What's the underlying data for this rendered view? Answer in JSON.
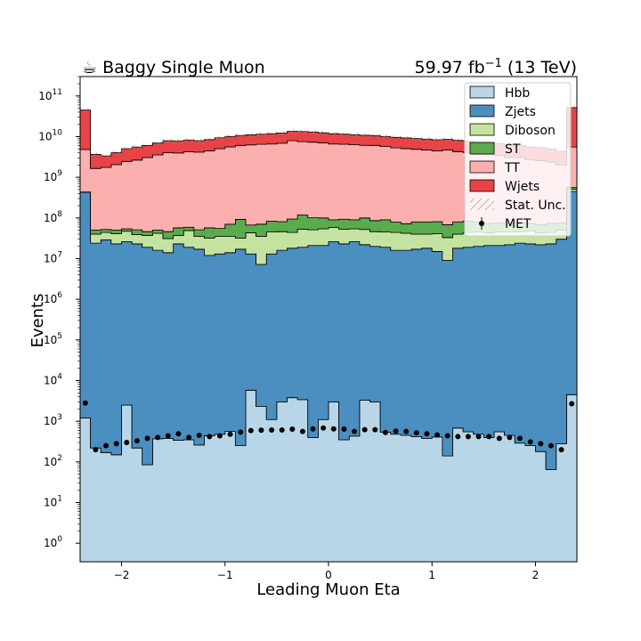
{
  "chart_data": {
    "type": "histogram-stack",
    "title_left": "Baggy Single Muon",
    "title_right_base": "59.97 fb",
    "title_right_exp": "−1",
    "title_right_tail": " (13 TeV)",
    "xlabel": "Leading Muon Eta",
    "ylabel": "Events",
    "yscale": "log",
    "xlim": [
      -2.4,
      2.4
    ],
    "ylim": [
      0.35,
      300000000000.0
    ],
    "xticks": [
      -2,
      -1,
      0,
      1,
      2
    ],
    "xtick_labels": [
      "−2",
      "−1",
      "0",
      "1",
      "2"
    ],
    "yticks_exp": [
      0,
      1,
      2,
      3,
      4,
      5,
      6,
      7,
      8,
      9,
      10,
      11
    ],
    "ytick_base": "10",
    "legend_position": "top-right",
    "bins": 48,
    "series": [
      {
        "name": "Hbb",
        "color": "#b8d6e8",
        "values": [
          1200,
          220,
          170,
          150,
          2500,
          220,
          85,
          370,
          380,
          340,
          350,
          260,
          440,
          480,
          560,
          250,
          5800,
          2300,
          1100,
          3000,
          3800,
          3400,
          400,
          1100,
          3000,
          350,
          430,
          3300,
          3000,
          540,
          480,
          450,
          420,
          380,
          410,
          140,
          680,
          550,
          480,
          400,
          550,
          450,
          290,
          250,
          180,
          65,
          280,
          4500
        ]
      },
      {
        "name": "Zjets",
        "color": "#4a8fc0",
        "values": [
          430000000.0,
          24000000.0,
          29000000.0,
          23000000.0,
          26000000.0,
          23000000.0,
          19000000.0,
          16000000.0,
          14000000.0,
          23000000.0,
          19000000.0,
          17000000.0,
          12000000.0,
          13000000.0,
          14000000.0,
          17000000.0,
          13000000.0,
          7200000.0,
          13000000.0,
          16000000.0,
          18000000.0,
          19000000.0,
          21000000.0,
          21000000.0,
          26000000.0,
          23000000.0,
          26000000.0,
          22000000.0,
          20000000.0,
          19000000.0,
          16000000.0,
          16000000.0,
          17000000.0,
          18000000.0,
          15000000.0,
          9000000.0,
          18000000.0,
          19000000.0,
          20000000.0,
          21000000.0,
          21000000.0,
          22000000.0,
          24000000.0,
          23000000.0,
          22000000.0,
          23000000.0,
          30000000.0,
          450000000.0
        ]
      },
      {
        "name": "Diboson",
        "color": "#c4e3a0",
        "values": [
          2000000.0,
          16000000.0,
          15000000.0,
          18000000.0,
          21000000.0,
          16000000.0,
          18000000.0,
          26000000.0,
          17000000.0,
          14000000.0,
          30000000.0,
          18000000.0,
          20000000.0,
          22000000.0,
          21000000.0,
          15000000.0,
          30000000.0,
          28000000.0,
          32000000.0,
          30000000.0,
          26000000.0,
          34000000.0,
          30000000.0,
          33000000.0,
          32000000.0,
          30000000.0,
          28000000.0,
          30000000.0,
          26000000.0,
          26000000.0,
          28000000.0,
          26000000.0,
          23000000.0,
          22000000.0,
          26000000.0,
          24000000.0,
          22000000.0,
          25000000.0,
          25000000.0,
          22000000.0,
          24000000.0,
          23000000.0,
          22000000.0,
          25000000.0,
          21000000.0,
          21000000.0,
          20000000.0,
          60000000.0
        ]
      },
      {
        "name": "ST",
        "color": "#5aab4c",
        "values": [
          1500000.0,
          10000000.0,
          8000000.0,
          9000000.0,
          7000000.0,
          12000000.0,
          9000000.0,
          8000000.0,
          15000000.0,
          20000000.0,
          10000000.0,
          16000000.0,
          25000000.0,
          20000000.0,
          35000000.0,
          60000000.0,
          24000000.0,
          35000000.0,
          38000000.0,
          35000000.0,
          50000000.0,
          65000000.0,
          50000000.0,
          46000000.0,
          32000000.0,
          40000000.0,
          36000000.0,
          48000000.0,
          40000000.0,
          45000000.0,
          35000000.0,
          30000000.0,
          40000000.0,
          40000000.0,
          40000000.0,
          35000000.0,
          40000000.0,
          40000000.0,
          35000000.0,
          30000000.0,
          30000000.0,
          30000000.0,
          30000000.0,
          25000000.0,
          25000000.0,
          30000000.0,
          25000000.0,
          50000000.0
        ]
      },
      {
        "name": "TT",
        "color": "#fcafaf",
        "values": [
          4400000000.0,
          1600000000.0,
          1700000000.0,
          2000000000.0,
          2400000000.0,
          2600000000.0,
          3000000000.0,
          3500000000.0,
          4000000000.0,
          3900000000.0,
          4200000000.0,
          4100000000.0,
          4400000000.0,
          5000000000.0,
          5500000000.0,
          6000000000.0,
          6200000000.0,
          6400000000.0,
          6500000000.0,
          6800000000.0,
          7800000000.0,
          7400000000.0,
          7200000000.0,
          6900000000.0,
          6500000000.0,
          6400000000.0,
          6200000000.0,
          6000000000.0,
          6000000000.0,
          5600000000.0,
          5200000000.0,
          5000000000.0,
          4800000000.0,
          4600000000.0,
          4400000000.0,
          4600000000.0,
          4200000000.0,
          4000000000.0,
          3600000000.0,
          3600000000.0,
          3400000000.0,
          3000000000.0,
          3000000000.0,
          2600000000.0,
          2500000000.0,
          2300000000.0,
          1900000000.0,
          5000000000.0
        ]
      },
      {
        "name": "Wjets",
        "color": "#e84346",
        "values": [
          40000000000.0,
          2000000000.0,
          1600000000.0,
          2000000000.0,
          2600000000.0,
          2900000000.0,
          3000000000.0,
          3400000000.0,
          3900000000.0,
          3900000000.0,
          4000000000.0,
          3800000000.0,
          4000000000.0,
          4300000000.0,
          4500000000.0,
          4600000000.0,
          4800000000.0,
          5000000000.0,
          5200000000.0,
          5400000000.0,
          5600000000.0,
          5800000000.0,
          5700000000.0,
          5400000000.0,
          5200000000.0,
          5000000000.0,
          4900000000.0,
          4700000000.0,
          4500000000.0,
          4400000000.0,
          4300000000.0,
          4200000000.0,
          4100000000.0,
          4000000000.0,
          3900000000.0,
          3900000000.0,
          3800000000.0,
          3700000000.0,
          3600000000.0,
          3500000000.0,
          3300000000.0,
          3100000000.0,
          3000000000.0,
          2900000000.0,
          2800000000.0,
          2600000000.0,
          2400000000.0,
          46000000000.0
        ]
      }
    ],
    "uncertainty": {
      "name": "Stat. Unc.",
      "color": "#8a8a8a",
      "fraction": 0.12
    },
    "data_points": {
      "name": "MET",
      "color": "#000000",
      "values": [
        2800,
        200,
        250,
        280,
        300,
        330,
        380,
        400,
        440,
        490,
        400,
        450,
        420,
        440,
        480,
        540,
        590,
        600,
        610,
        610,
        640,
        560,
        650,
        680,
        650,
        640,
        560,
        620,
        620,
        530,
        570,
        560,
        520,
        490,
        460,
        440,
        420,
        420,
        420,
        420,
        380,
        400,
        380,
        310,
        280,
        250,
        200,
        2700
      ]
    }
  }
}
